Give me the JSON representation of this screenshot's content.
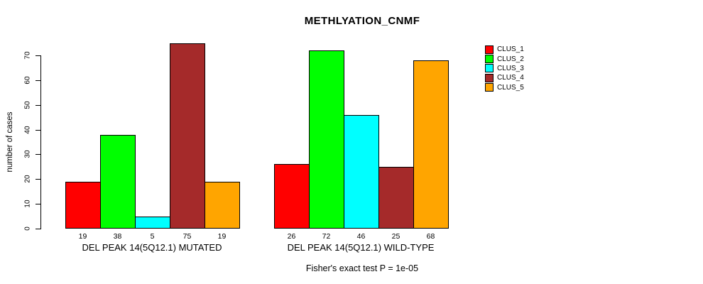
{
  "chart_data": {
    "type": "bar",
    "title": "METHLYATION_CNMF",
    "ylabel": "number of cases",
    "ylim": [
      0,
      70
    ],
    "yticks": [
      0,
      10,
      20,
      30,
      40,
      50,
      60,
      70
    ],
    "grid": false,
    "legend_position": "right",
    "bar_values_shown": true,
    "categories": [
      "CLUS_1",
      "CLUS_2",
      "CLUS_3",
      "CLUS_4",
      "CLUS_5"
    ],
    "series_colors": [
      "#ff0000",
      "#00ff00",
      "#00ffff",
      "#a52a2a",
      "#ffa500"
    ],
    "groups": [
      {
        "label": "DEL PEAK 14(5Q12.1) MUTATED",
        "values": [
          19,
          38,
          5,
          75,
          19
        ]
      },
      {
        "label": "DEL PEAK 14(5Q12.1) WILD-TYPE",
        "values": [
          26,
          72,
          46,
          25,
          68
        ]
      }
    ],
    "legend": [
      {
        "label": "CLUS_1",
        "color": "#ff0000"
      },
      {
        "label": "CLUS_2",
        "color": "#00ff00"
      },
      {
        "label": "CLUS_3",
        "color": "#00ffff"
      },
      {
        "label": "CLUS_4",
        "color": "#a52a2a"
      },
      {
        "label": "CLUS_5",
        "color": "#ffa500"
      }
    ],
    "footnote": "Fisher's exact test P = 1e-05"
  }
}
